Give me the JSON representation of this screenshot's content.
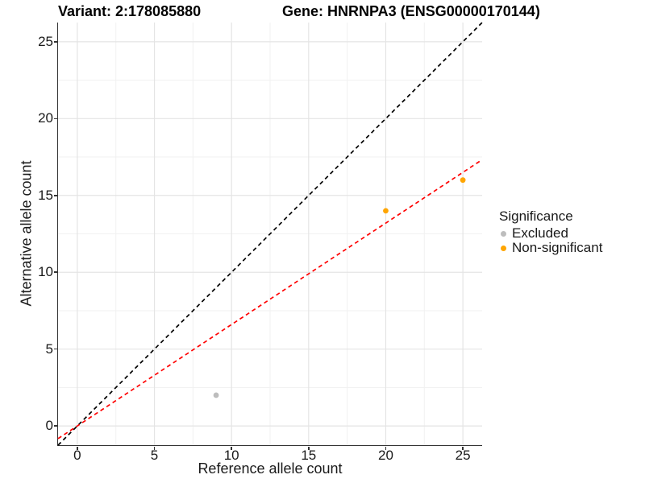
{
  "titles": {
    "variant": "Variant: 2:178085880",
    "gene": "Gene: HNRNPA3 (ENSG00000170144)"
  },
  "chart_data": {
    "type": "scatter",
    "xlabel": "Reference allele count",
    "ylabel": "Alternative allele count",
    "xlim": [
      -1.25,
      26.25
    ],
    "ylim": [
      -1.25,
      26.25
    ],
    "x_major_ticks": [
      0,
      5,
      10,
      15,
      20,
      25
    ],
    "y_major_ticks": [
      0,
      5,
      10,
      15,
      20,
      25
    ],
    "x_minor_ticks": [
      2.5,
      7.5,
      12.5,
      17.5,
      22.5
    ],
    "y_minor_ticks": [
      2.5,
      7.5,
      12.5,
      17.5,
      22.5
    ],
    "grid": true,
    "grid_major_color": "#e4e4e4",
    "grid_minor_color": "#f1f1f1",
    "series": [
      {
        "name": "Excluded",
        "color": "#bdbdbd",
        "points": [
          [
            9,
            2
          ]
        ]
      },
      {
        "name": "Non-significant",
        "color": "#ffa500",
        "points": [
          [
            20,
            14
          ],
          [
            25,
            16
          ]
        ]
      }
    ],
    "reference_lines": [
      {
        "name": "identity-line",
        "color": "#000000",
        "dashed": true,
        "slope": 1,
        "intercept": 0
      },
      {
        "name": "fit-line",
        "color": "#ff0000",
        "dashed": true,
        "slope": 0.66,
        "intercept": 0
      }
    ],
    "legend": {
      "title": "Significance",
      "position": "right",
      "items": [
        {
          "label": "Excluded",
          "color": "#bdbdbd"
        },
        {
          "label": "Non-significant",
          "color": "#ffa500"
        }
      ]
    }
  }
}
